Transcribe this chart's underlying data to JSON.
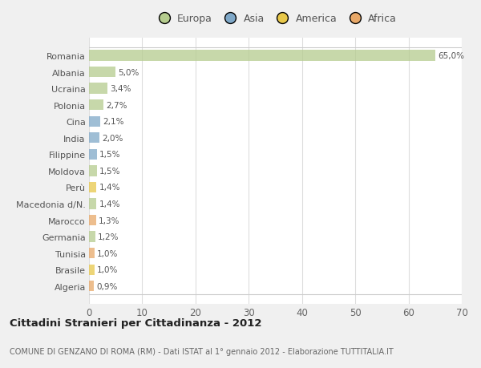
{
  "countries": [
    "Romania",
    "Albania",
    "Ucraina",
    "Polonia",
    "Cina",
    "India",
    "Filippine",
    "Moldova",
    "Perù",
    "Macedonia d/N.",
    "Marocco",
    "Germania",
    "Tunisia",
    "Brasile",
    "Algeria"
  ],
  "values": [
    65.0,
    5.0,
    3.4,
    2.7,
    2.1,
    2.0,
    1.5,
    1.5,
    1.4,
    1.4,
    1.3,
    1.2,
    1.0,
    1.0,
    0.9
  ],
  "labels": [
    "65,0%",
    "5,0%",
    "3,4%",
    "2,7%",
    "2,1%",
    "2,0%",
    "1,5%",
    "1,5%",
    "1,4%",
    "1,4%",
    "1,3%",
    "1,2%",
    "1,0%",
    "1,0%",
    "0,9%"
  ],
  "colors": [
    "#b5cc8e",
    "#b5cc8e",
    "#b5cc8e",
    "#b5cc8e",
    "#7fa8c8",
    "#7fa8c8",
    "#7fa8c8",
    "#b5cc8e",
    "#e8c84a",
    "#b5cc8e",
    "#e8a868",
    "#b5cc8e",
    "#e8a868",
    "#e8c84a",
    "#e8a868"
  ],
  "continent_colors": {
    "Europa": "#b5cc8e",
    "Asia": "#7fa8c8",
    "America": "#e8c84a",
    "Africa": "#e8a868"
  },
  "title": "Cittadini Stranieri per Cittadinanza - 2012",
  "subtitle": "COMUNE DI GENZANO DI ROMA (RM) - Dati ISTAT al 1° gennaio 2012 - Elaborazione TUTTITALIA.IT",
  "xlim": [
    0,
    70
  ],
  "xticks": [
    0,
    10,
    20,
    30,
    40,
    50,
    60,
    70
  ],
  "bg_color": "#f0f0f0",
  "plot_bg_color": "#ffffff",
  "grid_color": "#dddddd",
  "bar_alpha": 0.75
}
